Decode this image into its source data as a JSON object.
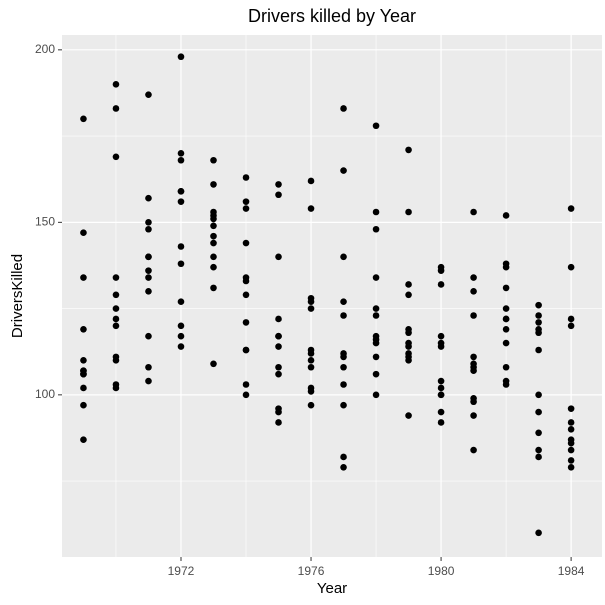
{
  "chart_data": {
    "type": "scatter",
    "title": "Drivers killed by Year",
    "x_label": "Year",
    "y_label": "DriversKilled",
    "color": "#000000",
    "grid": true,
    "xlim": [
      1968.34,
      1984.95
    ],
    "ylim": [
      53,
      204.3
    ],
    "xticks": [
      1972,
      1976,
      1980,
      1984
    ],
    "yticks": [
      100,
      150,
      200
    ],
    "x": [
      1969,
      1969,
      1969,
      1969,
      1969,
      1969,
      1969,
      1969,
      1969,
      1969,
      1969,
      1969,
      1970,
      1970,
      1970,
      1970,
      1970,
      1970,
      1970,
      1970,
      1970,
      1970,
      1970,
      1970,
      1971,
      1971,
      1971,
      1971,
      1971,
      1971,
      1971,
      1971,
      1971,
      1971,
      1971,
      1971,
      1972,
      1972,
      1972,
      1972,
      1972,
      1972,
      1972,
      1972,
      1972,
      1972,
      1972,
      1972,
      1973,
      1973,
      1973,
      1973,
      1973,
      1973,
      1973,
      1973,
      1973,
      1973,
      1973,
      1973,
      1974,
      1974,
      1974,
      1974,
      1974,
      1974,
      1974,
      1974,
      1974,
      1974,
      1974,
      1974,
      1975,
      1975,
      1975,
      1975,
      1975,
      1975,
      1975,
      1975,
      1975,
      1975,
      1975,
      1975,
      1976,
      1976,
      1976,
      1976,
      1976,
      1976,
      1976,
      1976,
      1976,
      1976,
      1976,
      1976,
      1977,
      1977,
      1977,
      1977,
      1977,
      1977,
      1977,
      1977,
      1977,
      1977,
      1977,
      1977,
      1978,
      1978,
      1978,
      1978,
      1978,
      1978,
      1978,
      1978,
      1978,
      1978,
      1978,
      1978,
      1979,
      1979,
      1979,
      1979,
      1979,
      1979,
      1979,
      1979,
      1979,
      1979,
      1979,
      1979,
      1980,
      1980,
      1980,
      1980,
      1980,
      1980,
      1980,
      1980,
      1980,
      1980,
      1980,
      1980,
      1981,
      1981,
      1981,
      1981,
      1981,
      1981,
      1981,
      1981,
      1981,
      1981,
      1981,
      1981,
      1982,
      1982,
      1982,
      1982,
      1982,
      1982,
      1982,
      1982,
      1982,
      1982,
      1982,
      1982,
      1983,
      1983,
      1983,
      1983,
      1983,
      1983,
      1983,
      1983,
      1983,
      1983,
      1983,
      1983,
      1984,
      1984,
      1984,
      1984,
      1984,
      1984,
      1984,
      1984,
      1984,
      1984,
      1984,
      1984
    ],
    "values": [
      107,
      97,
      102,
      87,
      119,
      106,
      110,
      106,
      107,
      134,
      147,
      180,
      125,
      134,
      110,
      102,
      103,
      111,
      120,
      129,
      122,
      183,
      169,
      190,
      134,
      108,
      104,
      117,
      157,
      148,
      130,
      140,
      136,
      140,
      187,
      150,
      159,
      143,
      114,
      127,
      159,
      156,
      138,
      120,
      117,
      170,
      168,
      198,
      144,
      146,
      109,
      131,
      140,
      151,
      152,
      161,
      153,
      168,
      149,
      137,
      163,
      156,
      154,
      144,
      134,
      133,
      129,
      121,
      113,
      103,
      100,
      113,
      161,
      158,
      140,
      122,
      117,
      114,
      108,
      106,
      96,
      95,
      92,
      117,
      162,
      154,
      128,
      127,
      125,
      113,
      112,
      110,
      108,
      102,
      101,
      97,
      183,
      165,
      140,
      127,
      123,
      112,
      111,
      108,
      103,
      97,
      82,
      79,
      178,
      153,
      148,
      134,
      125,
      123,
      117,
      116,
      115,
      111,
      106,
      100,
      171,
      153,
      132,
      129,
      119,
      118,
      115,
      114,
      112,
      111,
      110,
      94,
      137,
      136,
      132,
      117,
      115,
      114,
      104,
      102,
      100,
      95,
      92,
      100,
      153,
      134,
      130,
      123,
      111,
      109,
      107,
      99,
      98,
      94,
      84,
      108,
      152,
      138,
      137,
      131,
      125,
      122,
      115,
      108,
      104,
      103,
      122,
      119,
      126,
      123,
      121,
      119,
      118,
      113,
      100,
      95,
      89,
      84,
      82,
      60,
      154,
      137,
      122,
      120,
      96,
      92,
      90,
      87,
      86,
      84,
      81,
      79
    ]
  }
}
